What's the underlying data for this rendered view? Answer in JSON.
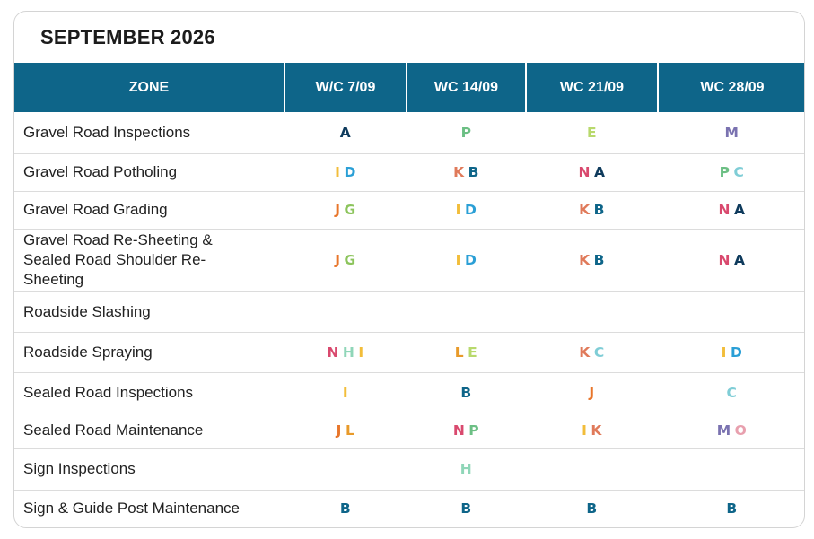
{
  "title": "SEPTEMBER 2026",
  "columns": [
    "ZONE",
    "W/C 7/09",
    "WC 14/09",
    "WC 21/09",
    "WC 28/09"
  ],
  "letter_colors": {
    "A": "#0e3a5c",
    "B": "#0e6589",
    "C": "#7fcdd6",
    "D": "#2a9fd6",
    "E": "#b8d96c",
    "G": "#8cc45c",
    "H": "#8fd6b8",
    "I": "#f2bd3a",
    "J": "#e8752a",
    "K": "#e07a5a",
    "L": "#e89a2a",
    "M": "#7a72b0",
    "N": "#d9496e",
    "O": "#e8a0ae",
    "P": "#6cbf84"
  },
  "rows": [
    {
      "zone": "Gravel Road Inspections",
      "cells": [
        [
          "A"
        ],
        [
          "P"
        ],
        [
          "E"
        ],
        [
          "M"
        ]
      ]
    },
    {
      "zone": "Gravel Road Potholing",
      "cells": [
        [
          "I",
          "D"
        ],
        [
          "K",
          "B"
        ],
        [
          "N",
          "A"
        ],
        [
          "P",
          "C"
        ]
      ]
    },
    {
      "zone": "Gravel Road Grading",
      "cells": [
        [
          "J",
          "G"
        ],
        [
          "I",
          "D"
        ],
        [
          "K",
          "B"
        ],
        [
          "N",
          "A"
        ]
      ]
    },
    {
      "zone": "Gravel Road Re-Sheeting & Sealed Road Shoulder Re-Sheeting",
      "cells": [
        [
          "J",
          "G"
        ],
        [
          "I",
          "D"
        ],
        [
          "K",
          "B"
        ],
        [
          "N",
          "A"
        ]
      ]
    },
    {
      "zone": "Roadside Slashing",
      "cells": [
        [],
        [],
        [],
        []
      ]
    },
    {
      "zone": "Roadside Spraying",
      "cells": [
        [
          "N",
          "H",
          "I"
        ],
        [
          "L",
          "E"
        ],
        [
          "K",
          "C"
        ],
        [
          "I",
          "D"
        ]
      ]
    },
    {
      "zone": "Sealed Road Inspections",
      "cells": [
        [
          "I"
        ],
        [
          "B"
        ],
        [
          "J"
        ],
        [
          "C"
        ]
      ]
    },
    {
      "zone": "Sealed Road Maintenance",
      "cells": [
        [
          "J",
          "L"
        ],
        [
          "N",
          "P"
        ],
        [
          "I",
          "K"
        ],
        [
          "M",
          "O"
        ]
      ]
    },
    {
      "zone": "Sign Inspections",
      "cells": [
        [],
        [
          "H"
        ],
        [],
        []
      ]
    },
    {
      "zone": "Sign & Guide Post Maintenance",
      "cells": [
        [
          "B"
        ],
        [
          "B"
        ],
        [
          "B"
        ],
        [
          "B"
        ]
      ]
    }
  ]
}
